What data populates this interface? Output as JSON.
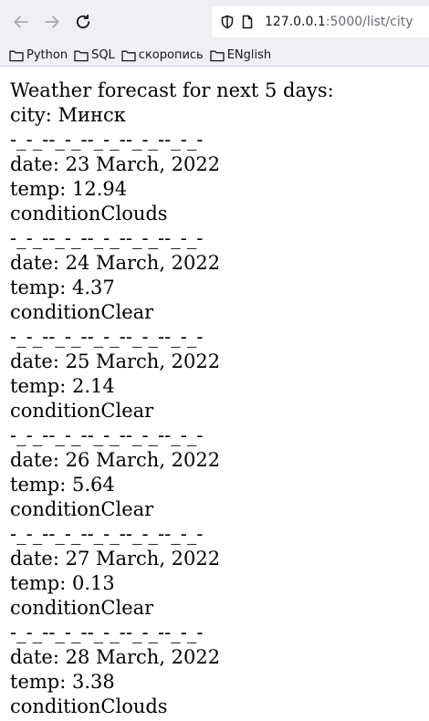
{
  "browser": {
    "url_host": "127.0.0.1",
    "url_rest": ":5000/list/city",
    "bookmarks": [
      "Python",
      "SQL",
      "скоропись",
      "ENglish"
    ]
  },
  "page": {
    "title": "Weather forecast for next 5 days:",
    "city_line": "city: Минск",
    "separator": "-_-_--_-_--_-_--_-_--_-_-",
    "forecasts": [
      {
        "date": "date: 23 March, 2022",
        "temp": "temp: 12.94",
        "condition": "conditionClouds"
      },
      {
        "date": "date: 24 March, 2022",
        "temp": "temp: 4.37",
        "condition": "conditionClear"
      },
      {
        "date": "date: 25 March, 2022",
        "temp": "temp: 2.14",
        "condition": "conditionClear"
      },
      {
        "date": "date: 26 March, 2022",
        "temp": "temp: 5.64",
        "condition": "conditionClear"
      },
      {
        "date": "date: 27 March, 2022",
        "temp": "temp: 0.13",
        "condition": "conditionClear"
      },
      {
        "date": "date: 28 March, 2022",
        "temp": "temp: 3.38",
        "condition": "conditionClouds"
      }
    ]
  }
}
